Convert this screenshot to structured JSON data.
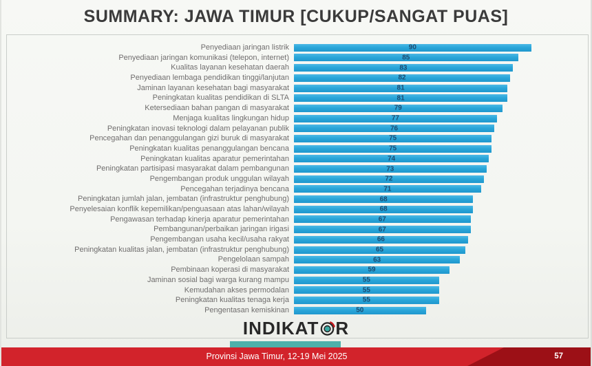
{
  "title": "SUMMARY: JAWA TIMUR [CUKUP/SANGAT PUAS]",
  "chart_data": {
    "type": "bar",
    "orientation": "horizontal",
    "title": "SUMMARY: JAWA TIMUR [CUKUP/SANGAT PUAS]",
    "xlabel": "",
    "ylabel": "",
    "xlim": [
      0,
      100
    ],
    "value_label_position": "center",
    "grid": false,
    "categories": [
      "Penyediaan jaringan listrik",
      "Penyediaan jaringan komunikasi (telepon, internet)",
      "Kualitas layanan kesehatan daerah",
      "Penyediaan lembaga pendidikan tinggi/lanjutan",
      "Jaminan layanan kesehatan bagi masyarakat",
      "Peningkatan kualitas pendidikan di SLTA",
      "Ketersediaan bahan pangan di masyarakat",
      "Menjaga kualitas lingkungan hidup",
      "Peningkatan inovasi teknologi dalam pelayanan publik",
      "Pencegahan dan penanggulangan gizi buruk di masyarakat",
      "Peningkatan kualitas penanggulangan bencana",
      "Peningkatan kualitas aparatur pemerintahan",
      "Peningkatan partisipasi masyarakat dalam pembangunan",
      "Pengembangan produk unggulan wilayah",
      "Pencegahan terjadinya bencana",
      "Peningkatan jumlah jalan, jembatan (infrastruktur penghubung)",
      "Penyelesaian konflik kepemilikan/penguasaan atas lahan/wilayah",
      "Pengawasan terhadap kinerja aparatur pemerintahan",
      "Pembangunan/perbaikan jaringan irigasi",
      "Pengembangan usaha kecil/usaha rakyat",
      "Peningkatan kualitas jalan, jembatan (infrastruktur penghubung)",
      "Pengelolaan sampah",
      "Pembinaan koperasi di masyarakat",
      "Jaminan sosial bagi warga kurang mampu",
      "Kemudahan akses permodalan",
      "Peningkatan kualitas tenaga kerja",
      "Pengentasan kemiskinan"
    ],
    "values": [
      90,
      85,
      83,
      82,
      81,
      81,
      79,
      77,
      76,
      75,
      75,
      74,
      73,
      72,
      71,
      68,
      68,
      67,
      67,
      66,
      65,
      63,
      59,
      55,
      55,
      55,
      50
    ],
    "colors": {
      "bar": "#2aa6d9",
      "value_label": "#1c4a70",
      "category_label": "#6f6d6d"
    }
  },
  "logo": {
    "text": "INDIKATOR",
    "part_before_icon": "INDIKAT",
    "part_after_icon": "R",
    "icon": "indikator-target-icon",
    "icon_colors": {
      "ring": "#282828",
      "center": "#3aa9a2",
      "swoosh": "#c4161c"
    }
  },
  "footer": {
    "caption": "Provinsi Jawa Timur, 12-19 Mei 2025",
    "page_number": "57",
    "colors": {
      "bar": "#d2232b",
      "dark_accent": "#9c1016",
      "teal_accent": "#4eb0aa"
    }
  }
}
